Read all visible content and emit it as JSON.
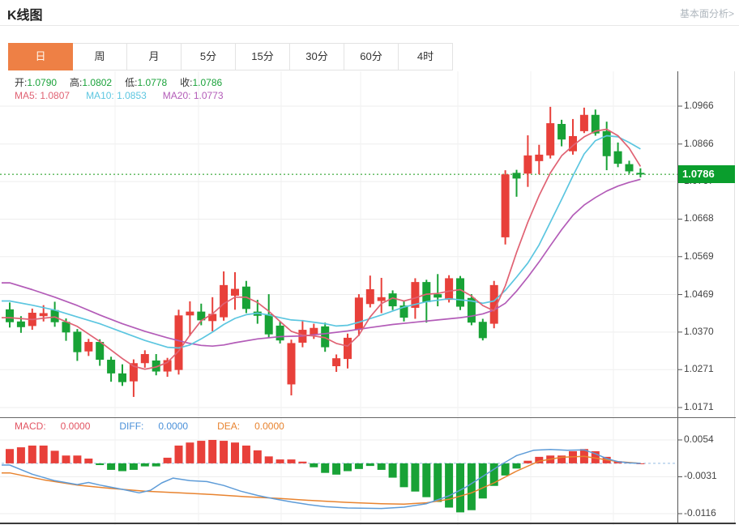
{
  "header": {
    "title": "K线图",
    "link": "基本面分析>"
  },
  "tabs": {
    "items": [
      "日",
      "周",
      "月",
      "5分",
      "15分",
      "30分",
      "60分",
      "4时"
    ],
    "names": [
      "tab-day",
      "tab-week",
      "tab-month",
      "tab-5min",
      "tab-15min",
      "tab-30min",
      "tab-60min",
      "tab-4hr"
    ],
    "selected": "日"
  },
  "readout": {
    "open_label": "开:",
    "open": "1.0790",
    "high_label": "高:",
    "high": "1.0802",
    "low_label": "低:",
    "low": "1.0778",
    "close_label": "收:",
    "close": "1.0786",
    "ma5_label": "MA5:",
    "ma5": "1.0807",
    "ma10_label": "MA10:",
    "ma10": "1.0853",
    "ma20_label": "MA20:",
    "ma20": "1.0773"
  },
  "macd_readout": {
    "macd_label": "MACD:",
    "macd": "0.0000",
    "diff_label": "DIFF:",
    "diff": "0.0000",
    "dea_label": "DEA:",
    "dea": "0.0000"
  },
  "price_tag": "1.0786",
  "colors": {
    "up": "#e8403a",
    "down": "#18a236",
    "ma5": "#e06273",
    "ma10": "#5cc6e0",
    "ma20": "#b35cb8",
    "diff": "#5e9cd8",
    "dea": "#e8832f",
    "macd_text": "#e25462",
    "diff_text": "#4a90d9",
    "dea_text": "#e8832f",
    "value_green": "#1aa23a",
    "tag_bg": "#0a9e2d",
    "dotted_line": "#55b555",
    "zero_dash": "#a9c9e9",
    "grid": "#ededed",
    "tab_selected": "#ee8045"
  },
  "chart_data": {
    "type": "candlestick",
    "title": "K线图 (日)",
    "current_price": 1.0786,
    "y_ticks": [
      1.0966,
      1.0866,
      1.0767,
      1.0668,
      1.0569,
      1.0469,
      1.037,
      1.0271,
      1.0171
    ],
    "x_gridlines": [
      142,
      245,
      347,
      445,
      565,
      655,
      757
    ],
    "candles": [
      [
        1.043,
        1.0448,
        1.0382,
        1.0396
      ],
      [
        1.0398,
        1.0412,
        1.0368,
        1.0383
      ],
      [
        1.0386,
        1.0432,
        1.0376,
        1.0421
      ],
      [
        1.0412,
        1.0441,
        1.0398,
        1.042
      ],
      [
        1.0428,
        1.045,
        1.0384,
        1.0396
      ],
      [
        1.0397,
        1.0406,
        1.0347,
        1.0369
      ],
      [
        1.0371,
        1.0378,
        1.0294,
        1.0317
      ],
      [
        1.0319,
        1.0352,
        1.0307,
        1.0344
      ],
      [
        1.0344,
        1.0351,
        1.0281,
        1.0297
      ],
      [
        1.0297,
        1.0305,
        1.0239,
        1.0261
      ],
      [
        1.0261,
        1.0285,
        1.0228,
        1.0238
      ],
      [
        1.024,
        1.0298,
        1.0199,
        1.0288
      ],
      [
        1.0288,
        1.0322,
        1.0276,
        1.0312
      ],
      [
        1.0295,
        1.0312,
        1.0256,
        1.0266
      ],
      [
        1.0266,
        1.0302,
        1.0252,
        1.0296
      ],
      [
        1.027,
        1.0429,
        1.0258,
        1.0414
      ],
      [
        1.0414,
        1.0451,
        1.036,
        1.0424
      ],
      [
        1.0424,
        1.0445,
        1.0388,
        1.0401
      ],
      [
        1.0399,
        1.0462,
        1.0372,
        1.0418
      ],
      [
        1.0409,
        1.053,
        1.04,
        1.0494
      ],
      [
        1.0466,
        1.0528,
        1.0429,
        1.0484
      ],
      [
        1.049,
        1.0505,
        1.042,
        1.0431
      ],
      [
        1.0424,
        1.0455,
        1.0392,
        1.0413
      ],
      [
        1.0417,
        1.047,
        1.0355,
        1.0364
      ],
      [
        1.0387,
        1.0398,
        1.034,
        1.0348
      ],
      [
        1.0232,
        1.035,
        1.0203,
        1.0341
      ],
      [
        1.0342,
        1.0402,
        1.033,
        1.0376
      ],
      [
        1.0363,
        1.0392,
        1.0352,
        1.0381
      ],
      [
        1.0385,
        1.0395,
        1.0318,
        1.033
      ],
      [
        1.028,
        1.0311,
        1.0265,
        1.0301
      ],
      [
        1.0299,
        1.0366,
        1.0274,
        1.0355
      ],
      [
        1.0376,
        1.047,
        1.036,
        1.0461
      ],
      [
        1.0444,
        1.0519,
        1.0435,
        1.0483
      ],
      [
        1.0452,
        1.0513,
        1.042,
        1.0462
      ],
      [
        1.0472,
        1.048,
        1.0428,
        1.0438
      ],
      [
        1.044,
        1.0452,
        1.0398,
        1.0408
      ],
      [
        1.0434,
        1.0512,
        1.0405,
        1.0502
      ],
      [
        1.0502,
        1.0508,
        1.0395,
        1.0449
      ],
      [
        1.047,
        1.0523,
        1.0438,
        1.0461
      ],
      [
        1.0455,
        1.052,
        1.0448,
        1.0512
      ],
      [
        1.0512,
        1.0518,
        1.0428,
        1.0437
      ],
      [
        1.046,
        1.047,
        1.0388,
        1.0395
      ],
      [
        1.0397,
        1.0405,
        1.0348,
        1.0354
      ],
      [
        1.0392,
        1.0505,
        1.038,
        1.0494
      ],
      [
        1.062,
        1.0797,
        1.0601,
        1.0786
      ],
      [
        1.079,
        1.0798,
        1.0727,
        1.0775
      ],
      [
        1.0788,
        1.0889,
        1.0753,
        1.0836
      ],
      [
        1.0821,
        1.0864,
        1.0786,
        1.0838
      ],
      [
        1.0836,
        1.0964,
        1.0828,
        1.0921
      ],
      [
        1.0919,
        1.093,
        1.086,
        1.0878
      ],
      [
        1.0847,
        1.0932,
        1.0838,
        1.0887
      ],
      [
        1.09,
        1.0962,
        1.0895,
        1.0943
      ],
      [
        1.0943,
        1.0957,
        1.0888,
        1.0894
      ],
      [
        1.09,
        1.0925,
        1.0797,
        1.0834
      ],
      [
        1.0847,
        1.087,
        1.0805,
        1.0814
      ],
      [
        1.0813,
        1.0822,
        1.0788,
        1.0794
      ],
      [
        1.079,
        1.0802,
        1.0778,
        1.0786
      ]
    ],
    "ma5_points": [
      [
        0,
        1.0408
      ],
      [
        2,
        1.0403
      ],
      [
        4,
        1.041
      ],
      [
        6,
        1.0385
      ],
      [
        8,
        1.0345
      ],
      [
        10,
        1.03
      ],
      [
        11,
        1.028
      ],
      [
        12,
        1.0272
      ],
      [
        13,
        1.0278
      ],
      [
        14,
        1.029
      ],
      [
        15,
        1.032
      ],
      [
        16,
        1.0362
      ],
      [
        17,
        1.04
      ],
      [
        18,
        1.0418
      ],
      [
        19,
        1.0445
      ],
      [
        20,
        1.0462
      ],
      [
        21,
        1.0462
      ],
      [
        22,
        1.0448
      ],
      [
        23,
        1.0425
      ],
      [
        24,
        1.0398
      ],
      [
        25,
        1.0372
      ],
      [
        26,
        1.0362
      ],
      [
        27,
        1.036
      ],
      [
        28,
        1.0355
      ],
      [
        29,
        1.034
      ],
      [
        30,
        1.0333
      ],
      [
        31,
        1.0362
      ],
      [
        32,
        1.041
      ],
      [
        33,
        1.0445
      ],
      [
        34,
        1.046
      ],
      [
        35,
        1.0452
      ],
      [
        36,
        1.046
      ],
      [
        37,
        1.047
      ],
      [
        38,
        1.0472
      ],
      [
        39,
        1.0478
      ],
      [
        40,
        1.0482
      ],
      [
        41,
        1.0465
      ],
      [
        42,
        1.044
      ],
      [
        43,
        1.0426
      ],
      [
        44,
        1.0492
      ],
      [
        45,
        1.058
      ],
      [
        46,
        1.066
      ],
      [
        47,
        1.073
      ],
      [
        48,
        1.079
      ],
      [
        49,
        1.0835
      ],
      [
        50,
        1.0862
      ],
      [
        51,
        1.0885
      ],
      [
        52,
        1.09
      ],
      [
        53,
        1.0905
      ],
      [
        54,
        1.0888
      ],
      [
        55,
        1.0855
      ],
      [
        56,
        1.0807
      ]
    ],
    "ma10_points": [
      [
        0,
        1.0452
      ],
      [
        2,
        1.0441
      ],
      [
        4,
        1.0428
      ],
      [
        6,
        1.041
      ],
      [
        8,
        1.0392
      ],
      [
        10,
        1.037
      ],
      [
        12,
        1.0348
      ],
      [
        14,
        1.033
      ],
      [
        15,
        1.0328
      ],
      [
        16,
        1.0336
      ],
      [
        17,
        1.0352
      ],
      [
        18,
        1.037
      ],
      [
        19,
        1.039
      ],
      [
        20,
        1.0406
      ],
      [
        21,
        1.0416
      ],
      [
        22,
        1.042
      ],
      [
        23,
        1.0415
      ],
      [
        24,
        1.0408
      ],
      [
        25,
        1.0402
      ],
      [
        26,
        1.04
      ],
      [
        28,
        1.0392
      ],
      [
        29,
        1.0386
      ],
      [
        30,
        1.0388
      ],
      [
        31,
        1.0396
      ],
      [
        33,
        1.0415
      ],
      [
        35,
        1.0436
      ],
      [
        37,
        1.045
      ],
      [
        39,
        1.0458
      ],
      [
        41,
        1.0452
      ],
      [
        42,
        1.0446
      ],
      [
        43,
        1.0452
      ],
      [
        44,
        1.048
      ],
      [
        45,
        1.0515
      ],
      [
        46,
        1.0552
      ],
      [
        47,
        1.06
      ],
      [
        48,
        1.066
      ],
      [
        49,
        1.072
      ],
      [
        50,
        1.0782
      ],
      [
        51,
        1.084
      ],
      [
        52,
        1.0875
      ],
      [
        53,
        1.0888
      ],
      [
        54,
        1.0885
      ],
      [
        55,
        1.087
      ],
      [
        56,
        1.0853
      ]
    ],
    "ma20_points": [
      [
        0,
        1.05
      ],
      [
        2,
        1.0482
      ],
      [
        4,
        1.0462
      ],
      [
        6,
        1.044
      ],
      [
        8,
        1.0415
      ],
      [
        10,
        1.0392
      ],
      [
        12,
        1.0372
      ],
      [
        14,
        1.0355
      ],
      [
        16,
        1.034
      ],
      [
        17,
        1.0335
      ],
      [
        18,
        1.0333
      ],
      [
        19,
        1.0336
      ],
      [
        20,
        1.0342
      ],
      [
        22,
        1.0352
      ],
      [
        24,
        1.0358
      ],
      [
        26,
        1.036
      ],
      [
        28,
        1.0366
      ],
      [
        30,
        1.0373
      ],
      [
        32,
        1.0382
      ],
      [
        34,
        1.039
      ],
      [
        36,
        1.0396
      ],
      [
        38,
        1.0402
      ],
      [
        40,
        1.0408
      ],
      [
        41,
        1.0412
      ],
      [
        42,
        1.0418
      ],
      [
        43,
        1.0428
      ],
      [
        44,
        1.0446
      ],
      [
        45,
        1.0478
      ],
      [
        46,
        1.0515
      ],
      [
        47,
        1.0555
      ],
      [
        48,
        1.0598
      ],
      [
        49,
        1.064
      ],
      [
        50,
        1.0678
      ],
      [
        51,
        1.0705
      ],
      [
        52,
        1.0725
      ],
      [
        53,
        1.0742
      ],
      [
        54,
        1.0755
      ],
      [
        55,
        1.0765
      ],
      [
        56,
        1.0773
      ]
    ],
    "macd": {
      "type": "bar",
      "y_ticks": [
        0.0054,
        -0.0031,
        -0.0116
      ],
      "histogram": [
        0.0033,
        0.0037,
        0.0041,
        0.0041,
        0.0029,
        0.0018,
        0.0018,
        0.0011,
        -0.0004,
        -0.0015,
        -0.0018,
        -0.0015,
        -0.0007,
        -0.0007,
        0.0013,
        0.0041,
        0.0048,
        0.0052,
        0.0054,
        0.0052,
        0.0048,
        0.0041,
        0.003,
        0.0016,
        0.0009,
        0.0009,
        0.0004,
        -0.0009,
        -0.0022,
        -0.0026,
        -0.0018,
        -0.0013,
        -0.0006,
        -0.0015,
        -0.0033,
        -0.0055,
        -0.0065,
        -0.0078,
        -0.0089,
        -0.0102,
        -0.0113,
        -0.0108,
        -0.0081,
        -0.0052,
        -0.0028,
        -0.0012,
        0.0006,
        0.0015,
        0.0018,
        0.0018,
        0.0028,
        0.0033,
        0.0028,
        0.0015,
        0.0005,
        0.0002,
        0.0
      ],
      "diff_points": [
        [
          0,
          -0.0004
        ],
        [
          2,
          -0.0025
        ],
        [
          4,
          -0.004
        ],
        [
          6,
          -0.0049
        ],
        [
          7,
          -0.0044
        ],
        [
          8,
          -0.005
        ],
        [
          10,
          -0.006
        ],
        [
          11.5,
          -0.0068
        ],
        [
          12.5,
          -0.0062
        ],
        [
          13.5,
          -0.0045
        ],
        [
          14.5,
          -0.0034
        ],
        [
          16,
          -0.004
        ],
        [
          17.5,
          -0.0042
        ],
        [
          19,
          -0.0051
        ],
        [
          20.5,
          -0.0064
        ],
        [
          22,
          -0.0074
        ],
        [
          23.5,
          -0.0082
        ],
        [
          25,
          -0.0089
        ],
        [
          26.5,
          -0.0095
        ],
        [
          28,
          -0.01
        ],
        [
          30,
          -0.0103
        ],
        [
          33,
          -0.0104
        ],
        [
          35,
          -0.0101
        ],
        [
          37,
          -0.0093
        ],
        [
          39,
          -0.0075
        ],
        [
          40.5,
          -0.0055
        ],
        [
          42,
          -0.003
        ],
        [
          43.5,
          -0.0005
        ],
        [
          45,
          0.0018
        ],
        [
          46.5,
          0.003
        ],
        [
          48,
          0.0032
        ],
        [
          49.5,
          0.003
        ],
        [
          51,
          0.0031
        ],
        [
          52,
          0.0022
        ],
        [
          53,
          0.0011
        ],
        [
          54,
          0.0004
        ],
        [
          55,
          0.0001
        ],
        [
          56,
          0.0
        ]
      ],
      "dea_points": [
        [
          0,
          -0.0022
        ],
        [
          3,
          -0.0038
        ],
        [
          6,
          -0.005
        ],
        [
          9,
          -0.0058
        ],
        [
          12,
          -0.0064
        ],
        [
          15,
          -0.0068
        ],
        [
          18,
          -0.0072
        ],
        [
          21,
          -0.0077
        ],
        [
          24,
          -0.0081
        ],
        [
          27,
          -0.0086
        ],
        [
          30,
          -0.009
        ],
        [
          33,
          -0.0093
        ],
        [
          35,
          -0.0094
        ],
        [
          37,
          -0.0091
        ],
        [
          39,
          -0.0083
        ],
        [
          41,
          -0.0068
        ],
        [
          43,
          -0.0045
        ],
        [
          45,
          -0.0018
        ],
        [
          47,
          0.0005
        ],
        [
          49,
          0.0014
        ],
        [
          51,
          0.0016
        ],
        [
          52.5,
          0.001
        ],
        [
          54,
          0.0004
        ],
        [
          55.5,
          0.0001
        ],
        [
          56,
          0.0
        ]
      ]
    }
  }
}
